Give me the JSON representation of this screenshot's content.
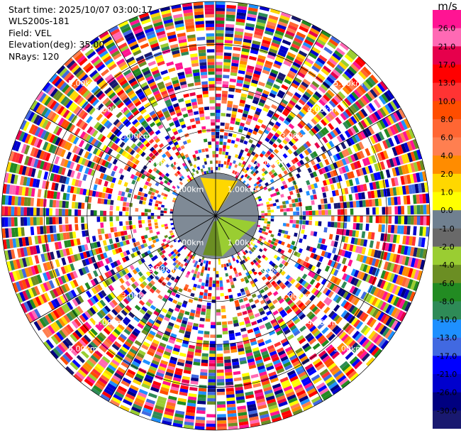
{
  "info": {
    "start_time": "Start time: 2025/10/07 03:00:17",
    "instrument": "WLS200s-181",
    "field": "Field: VEL",
    "elevation": "Elevation(deg): 35.00",
    "nrays": "NRays: 120"
  },
  "chart_data": {
    "type": "heatmap",
    "projection": "polar-ppi",
    "ray_count": 120,
    "range_rings": [
      "1.00km",
      "2.00km",
      "3.00km",
      "4.00km",
      "5.00km"
    ],
    "colorbar": {
      "unit": "m/s",
      "ticks": [
        "26.0",
        "21.0",
        "17.0",
        "13.0",
        "10.0",
        "8.0",
        "6.0",
        "4.0",
        "2.0",
        "1.0",
        "0.0",
        "-1.0",
        "-2.0",
        "-4.0",
        "-6.0",
        "-8.0",
        "-10.0",
        "-13.0",
        "-17.0",
        "-21.0",
        "-26.0",
        "-30.0"
      ],
      "colors": [
        "#ff1493",
        "#ff69b4",
        "#e6004c",
        "#ff0000",
        "#ff3333",
        "#ff4d00",
        "#ff6633",
        "#ff7f50",
        "#ff8c00",
        "#ffd700",
        "#ffff00",
        "#708090",
        "#696969",
        "#9acd32",
        "#6b8e23",
        "#228b22",
        "#2e8b57",
        "#1e90ff",
        "#4169e1",
        "#0000ff",
        "#0000cd",
        "#000080",
        "#191970"
      ]
    }
  }
}
